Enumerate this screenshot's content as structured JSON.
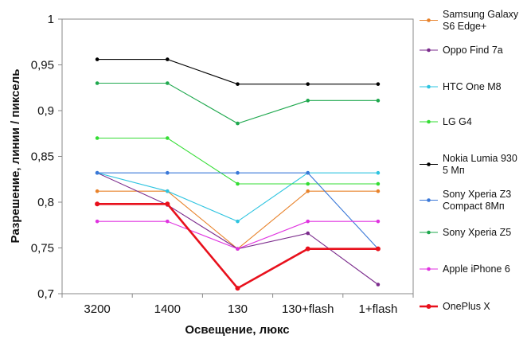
{
  "chart_data": {
    "type": "line",
    "xlabel": "Освещение,  люкс",
    "ylabel": "Разрешение,  линии  / пиксель",
    "categories": [
      "3200",
      "1400",
      "130",
      "130+flash",
      "1+flash"
    ],
    "ylim": [
      0.7,
      1.0
    ],
    "yticks": [
      "0,7",
      "0,75",
      "0,8",
      "0,85",
      "0,9",
      "0,95",
      "1"
    ],
    "ytick_values": [
      0.7,
      0.75,
      0.8,
      0.85,
      0.9,
      0.95,
      1.0
    ],
    "grid": false,
    "legend_position": "right",
    "series": [
      {
        "name": "Samsung Galaxy S6 Edge+",
        "label_lines": [
          "Samsung Galaxy",
          "S6 Edge+"
        ],
        "color": "#e8822a",
        "bold": false,
        "values": [
          0.812,
          0.812,
          0.749,
          0.812,
          0.812
        ]
      },
      {
        "name": "Oppo Find 7a",
        "label_lines": [
          "Oppo Find 7a"
        ],
        "color": "#7b2b8c",
        "bold": false,
        "values": [
          0.832,
          0.797,
          0.749,
          0.766,
          0.71
        ]
      },
      {
        "name": "HTC One M8",
        "label_lines": [
          "HTC One M8"
        ],
        "color": "#2ec4e0",
        "bold": false,
        "values": [
          0.832,
          0.812,
          0.779,
          0.832,
          0.832
        ]
      },
      {
        "name": "LG G4",
        "label_lines": [
          "LG G4"
        ],
        "color": "#33dd33",
        "bold": false,
        "values": [
          0.87,
          0.87,
          0.82,
          0.82,
          0.82
        ]
      },
      {
        "name": "Nokia Lumia 930 5 Мп",
        "label_lines": [
          "Nokia Lumia 930",
          "5 Мп"
        ],
        "color": "#000000",
        "bold": false,
        "values": [
          0.956,
          0.956,
          0.929,
          0.929,
          0.929
        ]
      },
      {
        "name": "Sony Xperia Z3 Compact 8Мп",
        "label_lines": [
          "Sony Xperia Z3",
          "Compact 8Мп"
        ],
        "color": "#3a78d8",
        "bold": false,
        "values": [
          0.832,
          0.832,
          0.832,
          0.832,
          0.749
        ]
      },
      {
        "name": "Sony Xperia Z5",
        "label_lines": [
          "Sony Xperia Z5"
        ],
        "color": "#1fa84e",
        "bold": false,
        "values": [
          0.93,
          0.93,
          0.886,
          0.911,
          0.911
        ]
      },
      {
        "name": "Apple iPhone 6",
        "label_lines": [
          "Apple iPhone 6"
        ],
        "color": "#e033e0",
        "bold": false,
        "values": [
          0.779,
          0.779,
          0.749,
          0.779,
          0.779
        ]
      },
      {
        "name": "OnePlus X",
        "label_lines": [
          "OnePlus X"
        ],
        "color": "#e8101c",
        "bold": true,
        "values": [
          0.798,
          0.798,
          0.706,
          0.749,
          0.749
        ]
      }
    ]
  }
}
